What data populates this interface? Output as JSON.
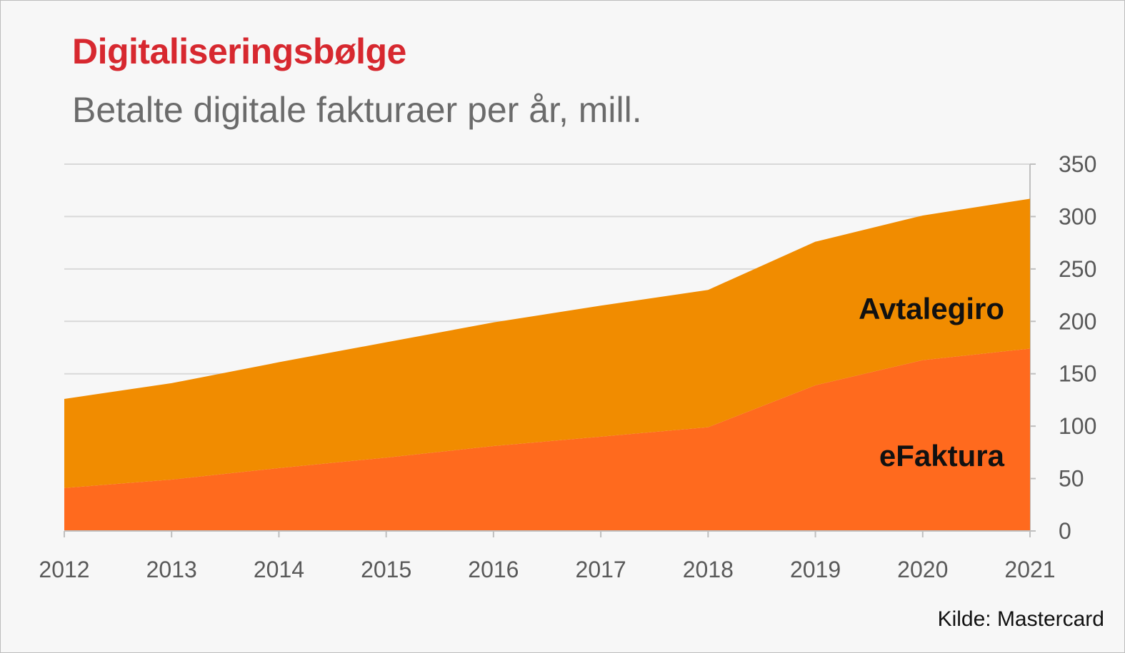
{
  "title": "Digitaliseringsbølge",
  "subtitle": "Betalte digitale fakturaer per år, mill.",
  "source": "Kilde: Mastercard",
  "colors": {
    "efaktura": "#ff6a1e",
    "avtalegiro": "#f18c00",
    "grid": "#d9d9d9",
    "axis": "#bfbfbf",
    "title": "#d7282f"
  },
  "chart_data": {
    "type": "area",
    "stacked": true,
    "x": [
      "2012",
      "2013",
      "2014",
      "2015",
      "2016",
      "2017",
      "2018",
      "2019",
      "2020",
      "2021"
    ],
    "series": [
      {
        "name": "eFaktura",
        "values": [
          41,
          49,
          60,
          70,
          81,
          90,
          99,
          139,
          163,
          174
        ]
      },
      {
        "name": "Avtalegiro",
        "values": [
          85,
          92,
          101,
          110,
          118,
          125,
          131,
          137,
          138,
          143
        ]
      }
    ],
    "ylim": [
      0,
      350
    ],
    "yticks": [
      "0",
      "50",
      "100",
      "150",
      "200",
      "250",
      "300",
      "350"
    ],
    "y_axis_position": "right",
    "grid": true,
    "legend": "inline labels"
  }
}
